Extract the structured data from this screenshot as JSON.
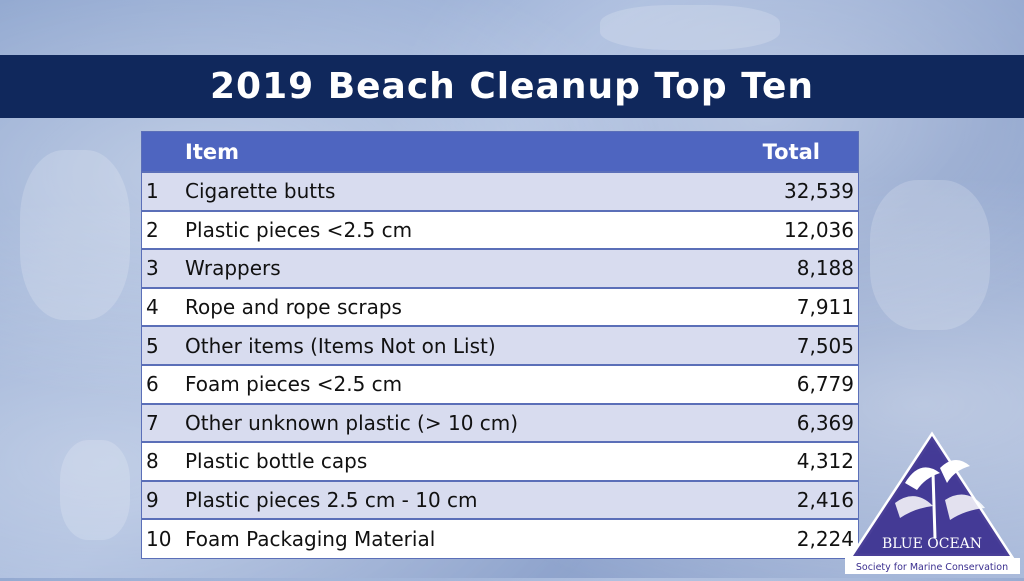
{
  "title": "2019 Beach Cleanup Top Ten",
  "table": {
    "header_item": "Item",
    "header_total": "Total",
    "rows": [
      {
        "rank": "1",
        "item": "Cigarette butts",
        "total": "32,539"
      },
      {
        "rank": "2",
        "item": "Plastic pieces <2.5 cm",
        "total": "12,036"
      },
      {
        "rank": "3",
        "item": "Wrappers",
        "total": "8,188"
      },
      {
        "rank": "4",
        "item": "Rope and rope scraps",
        "total": "7,911"
      },
      {
        "rank": "5",
        "item": "Other items (Items Not on List)",
        "total": "7,505"
      },
      {
        "rank": "6",
        "item": "Foam pieces <2.5 cm",
        "total": "6,779"
      },
      {
        "rank": "7",
        "item": "Other unknown plastic (> 10 cm)",
        "total": "6,369"
      },
      {
        "rank": "8",
        "item": "Plastic bottle caps",
        "total": "4,312"
      },
      {
        "rank": "9",
        "item": "Plastic pieces 2.5 cm - 10 cm",
        "total": "2,416"
      },
      {
        "rank": "10",
        "item": "Foam Packaging Material",
        "total": "2,224"
      }
    ]
  },
  "logo": {
    "name": "BLUE OCEAN",
    "tagline": "Society for Marine Conservation"
  },
  "colors": {
    "title_bar": "#10285c",
    "header_row": "#4e65c0",
    "row_stripe": "#d8dcef",
    "logo_blue": "#3b2f8f"
  }
}
